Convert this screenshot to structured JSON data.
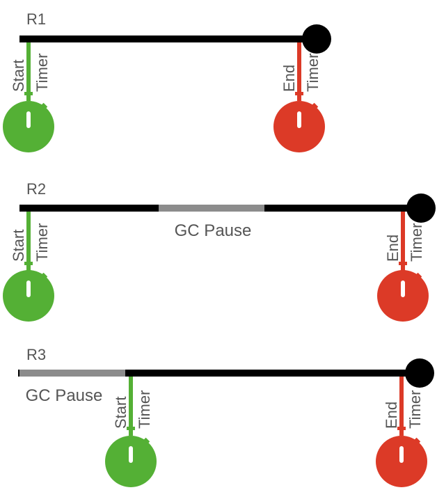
{
  "colors": {
    "timeline": "#000000",
    "gc_pause": "#8c8c8c",
    "start_timer": "#54b035",
    "end_timer": "#dc3a27",
    "label_text": "#555555"
  },
  "rows": [
    {
      "label": "R1",
      "start_timer": {
        "line1": "Start",
        "line2": "Timer",
        "icon": "stopwatch-icon"
      },
      "end_timer": {
        "line1": "End",
        "line2": "Timer",
        "icon": "stopwatch-icon"
      }
    },
    {
      "label": "R2",
      "gc_pause": "GC Pause",
      "start_timer": {
        "line1": "Start",
        "line2": "Timer",
        "icon": "stopwatch-icon"
      },
      "end_timer": {
        "line1": "End",
        "line2": "Timer",
        "icon": "stopwatch-icon"
      }
    },
    {
      "label": "R3",
      "gc_pause": "GC Pause",
      "start_timer": {
        "line1": "Start",
        "line2": "Timer",
        "icon": "stopwatch-icon"
      },
      "end_timer": {
        "line1": "End",
        "line2": "Timer",
        "icon": "stopwatch-icon"
      }
    }
  ]
}
